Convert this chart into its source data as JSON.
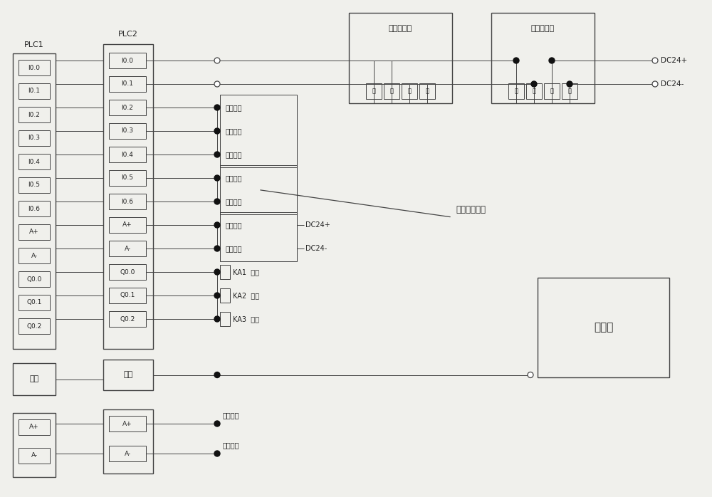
{
  "bg": "#f0f0ec",
  "lc": "#444444",
  "tc": "#222222",
  "fig_w": 10.0,
  "fig_h": 6.98,
  "dpi": 100,
  "plc1_label": "PLC1",
  "plc2_label": "PLC2",
  "encoder1_label": "第一编码器",
  "encoder2_label": "第二编码器",
  "touchscreen_label": "触摸屏",
  "main_switch_label": "主令综合开关",
  "dc24p_label": "DC24+",
  "dc24m_label": "DC24-",
  "sub_pin_labels": [
    "黑",
    "白",
    "蓝",
    "棕"
  ],
  "plc1_rows": [
    "I0.0",
    "I0.1",
    "I0.2",
    "I0.3",
    "I0.4",
    "I0.5",
    "I0.6",
    "A+",
    "A-",
    "Q0.0",
    "Q0.1",
    "Q0.2"
  ],
  "plc1_tong": "通讯",
  "plc2_rows": [
    "I0.0",
    "I0.1",
    "I0.2",
    "I0.3",
    "I0.4",
    "I0.5",
    "I0.6",
    "A+",
    "A-",
    "Q0.0",
    "Q0.1",
    "Q0.2"
  ],
  "plc2_tong": "通讯",
  "plc1_bot_rows": [
    "A+",
    "A-"
  ],
  "plc2_bot_rows": [
    "A+",
    "A-"
  ],
  "safety_labels": [
    "安全回路",
    "运行检测",
    "故障检测"
  ],
  "ms_labels": [
    "主令提升",
    "主令下降"
  ],
  "analog_labels": [
    "模拟给定",
    "模拟给定"
  ],
  "analog_dc_labels": [
    "DC24+",
    "DC24-"
  ],
  "ka_data": [
    [
      "KA1",
      "提升"
    ],
    [
      "KA2",
      "下降"
    ],
    [
      "KA3",
      "复位"
    ]
  ],
  "speed_labels": [
    "速度给定",
    "速度给定"
  ]
}
